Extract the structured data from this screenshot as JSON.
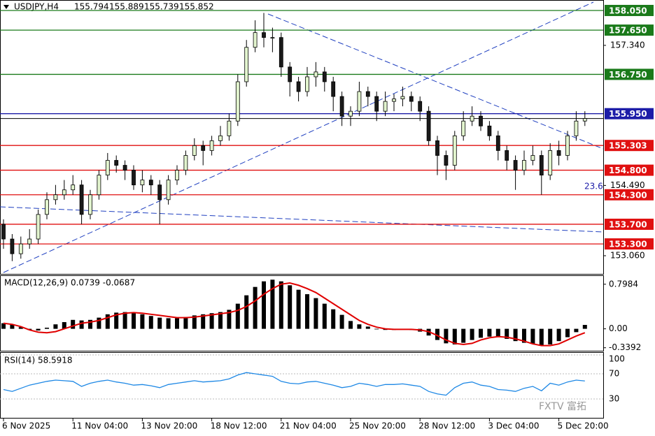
{
  "chart_data": {
    "type": "candlestick",
    "symbol": "USDJPY,H4",
    "ohlc_header": [
      "155.794",
      "155.889",
      "155.739",
      "155.852"
    ],
    "categories": [
      "6 Nov 2025",
      null,
      null,
      null,
      null,
      null,
      null,
      null,
      "11 Nov 04:00",
      null,
      null,
      null,
      null,
      null,
      null,
      null,
      "13 Nov 20:00",
      null,
      null,
      null,
      null,
      null,
      null,
      null,
      "18 Nov 12:00",
      null,
      null,
      null,
      null,
      null,
      null,
      null,
      "21 Nov 04:00",
      null,
      null,
      null,
      null,
      null,
      null,
      null,
      "25 Nov 20:00",
      null,
      null,
      null,
      null,
      null,
      null,
      null,
      "28 Nov 12:00",
      null,
      null,
      null,
      null,
      null,
      null,
      null,
      "3 Dec 04:00",
      null,
      null,
      null,
      null,
      null,
      null,
      null,
      "5 Dec 20:00",
      null,
      null,
      null
    ],
    "open": [
      153.7,
      153.4,
      153.1,
      153.3,
      153.4,
      153.9,
      154.2,
      154.3,
      154.4,
      154.5,
      153.9,
      154.3,
      154.7,
      155.0,
      154.9,
      154.8,
      154.5,
      154.6,
      154.5,
      154.2,
      154.6,
      154.8,
      155.1,
      155.3,
      155.2,
      155.4,
      155.5,
      155.8,
      156.6,
      157.3,
      157.6,
      157.5,
      157.5,
      156.9,
      156.6,
      156.4,
      156.7,
      156.8,
      156.6,
      156.3,
      155.9,
      156.0,
      156.4,
      156.3,
      156.0,
      156.2,
      156.25,
      156.3,
      156.2,
      156.0,
      155.4,
      155.1,
      154.9,
      155.5,
      155.8,
      155.9,
      155.7,
      155.5,
      155.2,
      155.0,
      154.8,
      155.0,
      155.1,
      154.7,
      155.2,
      155.1,
      155.5,
      155.8
    ],
    "high": [
      153.8,
      153.5,
      153.45,
      153.6,
      154.0,
      154.35,
      154.5,
      154.6,
      154.7,
      154.6,
      154.4,
      154.8,
      155.15,
      155.1,
      155.0,
      154.9,
      154.8,
      154.7,
      154.6,
      154.7,
      154.9,
      155.2,
      155.45,
      155.4,
      155.5,
      155.7,
      155.95,
      156.75,
      157.45,
      157.85,
      158.0,
      157.7,
      157.6,
      157.0,
      156.7,
      156.9,
      157.0,
      156.9,
      156.7,
      156.4,
      156.1,
      156.6,
      156.5,
      156.4,
      156.4,
      156.35,
      156.5,
      156.4,
      156.3,
      156.1,
      155.5,
      155.2,
      155.6,
      156.0,
      156.1,
      156.0,
      155.8,
      155.6,
      155.3,
      155.1,
      155.2,
      155.3,
      155.2,
      155.35,
      155.4,
      155.6,
      156.0,
      156.0
    ],
    "low": [
      153.2,
      152.95,
      153.0,
      153.2,
      153.3,
      153.8,
      154.1,
      154.2,
      154.3,
      153.7,
      153.8,
      154.2,
      154.6,
      154.75,
      154.6,
      154.4,
      154.35,
      154.3,
      153.7,
      154.1,
      154.5,
      154.7,
      155.0,
      154.9,
      155.1,
      155.3,
      155.4,
      155.7,
      156.5,
      157.2,
      157.3,
      157.2,
      156.7,
      156.3,
      156.2,
      156.3,
      156.5,
      156.4,
      156.0,
      155.7,
      155.7,
      155.9,
      156.1,
      155.8,
      155.9,
      156.0,
      156.1,
      156.0,
      155.8,
      155.3,
      154.7,
      154.6,
      154.8,
      155.4,
      155.7,
      155.6,
      155.4,
      155.0,
      154.8,
      154.4,
      154.7,
      154.9,
      154.3,
      154.6,
      154.9,
      155.0,
      155.4,
      155.7
    ],
    "close": [
      153.4,
      153.1,
      153.3,
      153.4,
      153.9,
      154.2,
      154.3,
      154.4,
      154.5,
      153.9,
      154.3,
      154.7,
      155.0,
      154.9,
      154.8,
      154.5,
      154.6,
      154.5,
      154.2,
      154.6,
      154.8,
      155.1,
      155.3,
      155.2,
      155.4,
      155.5,
      155.8,
      156.6,
      157.3,
      157.6,
      157.5,
      157.5,
      156.9,
      156.6,
      156.4,
      156.7,
      156.8,
      156.6,
      156.3,
      155.9,
      156.0,
      156.4,
      156.3,
      156.0,
      156.2,
      156.25,
      156.3,
      156.2,
      156.0,
      155.4,
      155.1,
      154.9,
      155.5,
      155.8,
      155.9,
      155.7,
      155.5,
      155.2,
      155.0,
      154.8,
      155.0,
      155.1,
      154.7,
      155.2,
      155.1,
      155.5,
      155.8,
      155.852
    ],
    "up_color": "#e3f5cf",
    "down_color": "#1a1a1a",
    "ylim": [
      152.69,
      158.263
    ],
    "yticks": [
      {
        "value": 157.34,
        "label": "157.340"
      },
      {
        "value": 154.49,
        "label": "154.490"
      },
      {
        "value": 153.06,
        "label": "153.060"
      }
    ],
    "levels": [
      {
        "value": 158.05,
        "label": "158.050",
        "color": "#1a7a1a"
      },
      {
        "value": 157.65,
        "label": "157.650",
        "color": "#1a7a1a"
      },
      {
        "value": 156.75,
        "label": "156.750",
        "color": "#1a7a1a"
      },
      {
        "value": 155.95,
        "label": "155.950",
        "color": "#1c1ca8"
      },
      {
        "value": 155.303,
        "label": "155.303",
        "color": "#e01010"
      },
      {
        "value": 154.8,
        "label": "154.800",
        "color": "#e01010"
      },
      {
        "value": 154.3,
        "label": "154.300",
        "color": "#e01010"
      },
      {
        "value": 153.7,
        "label": "153.700",
        "color": "#e01010"
      },
      {
        "value": 153.3,
        "label": "153.300",
        "color": "#e01010"
      }
    ],
    "current_price_line": 155.852,
    "fib_label": "23.6",
    "watermark": "FXTV 富拓",
    "macd": {
      "title": "MACD(12,26,9) 0.0739 -0.0687",
      "ylim": [
        -0.393,
        0.946
      ],
      "yticks": [
        {
          "value": 0.7984,
          "label": "0.7984"
        },
        {
          "value": 0,
          "label": "0.00"
        },
        {
          "value": -0.3392,
          "label": "-0.3392"
        }
      ],
      "histogram_color": "#000000",
      "signal_color": "#e00000",
      "histogram": [
        0.1,
        0.08,
        0.03,
        -0.02,
        -0.03,
        0.02,
        0.08,
        0.12,
        0.16,
        0.15,
        0.16,
        0.2,
        0.26,
        0.29,
        0.3,
        0.28,
        0.26,
        0.23,
        0.2,
        0.19,
        0.19,
        0.21,
        0.24,
        0.26,
        0.28,
        0.3,
        0.34,
        0.45,
        0.6,
        0.75,
        0.85,
        0.88,
        0.85,
        0.78,
        0.7,
        0.62,
        0.55,
        0.45,
        0.35,
        0.25,
        0.14,
        0.08,
        0.04,
        -0.01,
        -0.02,
        -0.02,
        -0.01,
        -0.02,
        -0.05,
        -0.12,
        -0.2,
        -0.26,
        -0.28,
        -0.25,
        -0.2,
        -0.16,
        -0.14,
        -0.15,
        -0.18,
        -0.22,
        -0.25,
        -0.27,
        -0.3,
        -0.28,
        -0.22,
        -0.15,
        -0.06,
        0.07
      ],
      "signal": [
        0.1,
        0.08,
        0.04,
        -0.02,
        -0.06,
        -0.07,
        -0.05,
        0.0,
        0.05,
        0.1,
        0.12,
        0.15,
        0.2,
        0.25,
        0.28,
        0.29,
        0.28,
        0.26,
        0.24,
        0.22,
        0.2,
        0.2,
        0.21,
        0.23,
        0.25,
        0.27,
        0.29,
        0.33,
        0.4,
        0.5,
        0.62,
        0.72,
        0.8,
        0.82,
        0.78,
        0.72,
        0.65,
        0.55,
        0.45,
        0.35,
        0.25,
        0.15,
        0.08,
        0.03,
        0.0,
        -0.01,
        -0.01,
        -0.01,
        -0.02,
        -0.05,
        -0.12,
        -0.2,
        -0.26,
        -0.28,
        -0.26,
        -0.2,
        -0.16,
        -0.14,
        -0.15,
        -0.18,
        -0.22,
        -0.27,
        -0.3,
        -0.3,
        -0.27,
        -0.2,
        -0.13,
        -0.07
      ]
    },
    "rsi": {
      "title": "RSI(14) 58.5918",
      "ylim": [
        0,
        100
      ],
      "yticks": [
        100,
        70,
        30
      ],
      "color": "#1e88e5",
      "values": [
        45,
        42,
        47,
        52,
        55,
        58,
        60,
        59,
        58,
        50,
        55,
        58,
        60,
        57,
        55,
        52,
        53,
        51,
        48,
        53,
        55,
        57,
        59,
        57,
        58,
        59,
        62,
        68,
        72,
        70,
        68,
        66,
        58,
        55,
        54,
        57,
        58,
        55,
        52,
        48,
        50,
        55,
        53,
        50,
        53,
        53,
        54,
        52,
        50,
        42,
        38,
        36,
        48,
        55,
        57,
        52,
        50,
        45,
        44,
        42,
        47,
        50,
        43,
        55,
        52,
        57,
        60,
        58.6
      ]
    }
  }
}
